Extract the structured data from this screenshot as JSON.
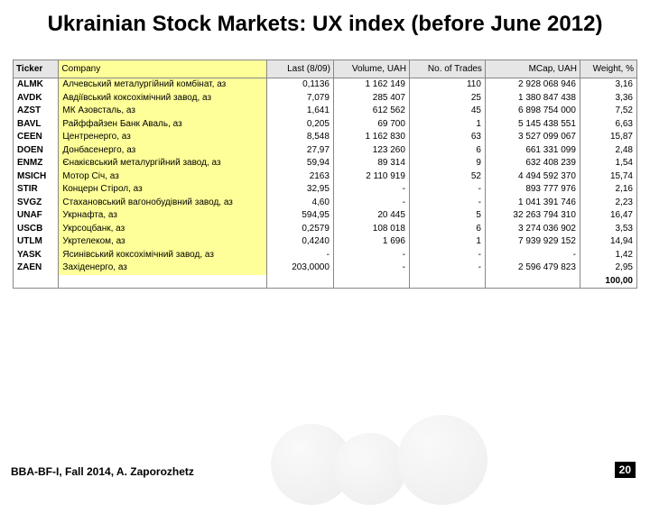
{
  "title": "Ukrainian Stock Markets: UX index\n(before June 2012)",
  "footer": "BBA-BF-I, Fall 2014, A. Zaporozhetz",
  "page_number": "20",
  "colors": {
    "header_bg": "#e6e6e6",
    "company_bg": "#ffff99",
    "border": "#888888",
    "title_color": "#000000"
  },
  "table": {
    "columns": [
      "Ticker",
      "Company",
      "Last (8/09)",
      "Volume, UAH",
      "No. of Trades",
      "MCap, UAH",
      "Weight, %"
    ],
    "col_align": [
      "left",
      "left",
      "right",
      "right",
      "right",
      "right",
      "right"
    ],
    "rows": [
      [
        "ALMK",
        "Алчевський металургійний комбінат, аз",
        "0,1136",
        "1 162 149",
        "110",
        "2 928 068 946",
        "3,16"
      ],
      [
        "AVDK",
        "Авдіївський коксохімічний завод, аз",
        "7,079",
        "285 407",
        "25",
        "1 380 847 438",
        "3,36"
      ],
      [
        "AZST",
        "МК Азовсталь, аз",
        "1,641",
        "612 562",
        "45",
        "6 898 754 000",
        "7,52"
      ],
      [
        "BAVL",
        "Райффайзен Банк Аваль, аз",
        "0,205",
        "69 700",
        "1",
        "5 145 438 551",
        "6,63"
      ],
      [
        "CEEN",
        "Центренерго, аз",
        "8,548",
        "1 162 830",
        "63",
        "3 527 099 067",
        "15,87"
      ],
      [
        "DOEN",
        "Донбасенерго, аз",
        "27,97",
        "123 260",
        "6",
        "661 331 099",
        "2,48"
      ],
      [
        "ENMZ",
        "Єнакієвський металургійний завод, аз",
        "59,94",
        "89 314",
        "9",
        "632 408 239",
        "1,54"
      ],
      [
        "MSICH",
        "Мотор Січ, аз",
        "2163",
        "2 110 919",
        "52",
        "4 494 592 370",
        "15,74"
      ],
      [
        "STIR",
        "Концерн Стірол, аз",
        "32,95",
        "-",
        "-",
        "893 777 976",
        "2,16"
      ],
      [
        "SVGZ",
        "Стахановський вагонобудівний завод, аз",
        "4,60",
        "-",
        "-",
        "1 041 391 746",
        "2,23"
      ],
      [
        "UNAF",
        "Укрнафта, аз",
        "594,95",
        "20 445",
        "5",
        "32 263 794 310",
        "16,47"
      ],
      [
        "USCB",
        "Укрсоцбанк, аз",
        "0,2579",
        "108 018",
        "6",
        "3 274 036 902",
        "3,53"
      ],
      [
        "UTLM",
        "Укртелеком, аз",
        "0,4240",
        "1 696",
        "1",
        "7 939 929 152",
        "14,94"
      ],
      [
        "YASK",
        "Ясинівський коксохімічний завод, аз",
        "-",
        "-",
        "-",
        "-",
        "1,42"
      ],
      [
        "ZAEN",
        "Західенерго, аз",
        "203,0000",
        "-",
        "-",
        "2 596 479 823",
        "2,95"
      ]
    ],
    "total_row": [
      "",
      "",
      "",
      "",
      "",
      "",
      "100,00"
    ]
  }
}
